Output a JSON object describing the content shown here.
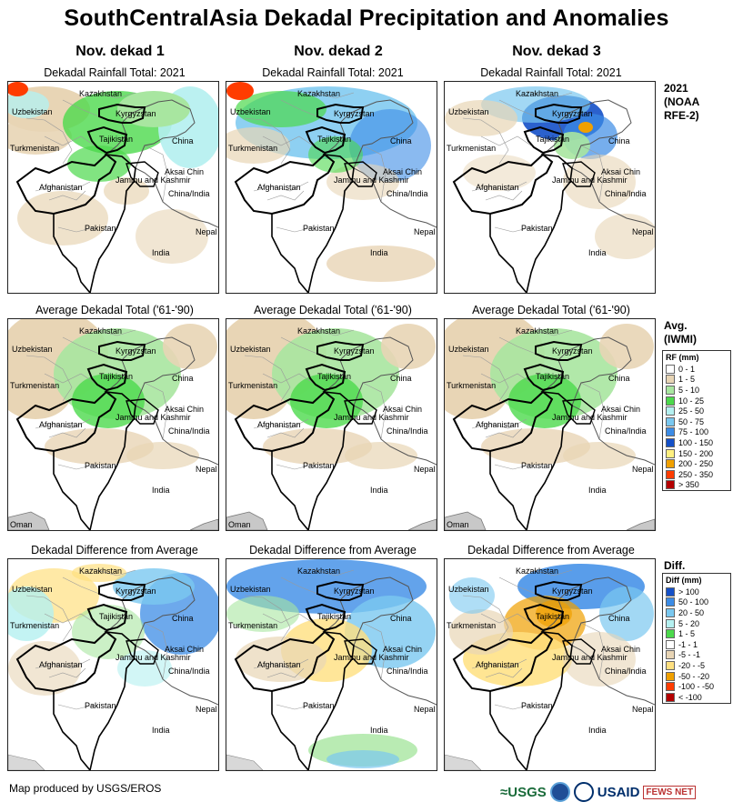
{
  "title": "SouthCentralAsia Dekadal Precipitation and Anomalies",
  "columns": [
    {
      "heading": "Nov. dekad 1"
    },
    {
      "heading": "Nov. dekad 2"
    },
    {
      "heading": "Nov. dekad 3"
    }
  ],
  "rows": [
    {
      "subtitle": "Dekadal Rainfall Total: 2021",
      "side_label": [
        "2021",
        "(NOAA",
        "RFE-2)"
      ]
    },
    {
      "subtitle": "Average Dekadal Total ('61-'90)",
      "side_label": [
        "Avg.",
        "(IWMI)"
      ]
    },
    {
      "subtitle": "Dekadal Difference from Average",
      "side_label": [
        "Diff."
      ]
    }
  ],
  "place_labels": {
    "kazakhstan": "Kazakhstan",
    "uzbekistan": "Uzbekistan",
    "kyrgyzstan": "Kyrgyzstan",
    "turkmenistan": "Turkmenistan",
    "tajikistan": "Tajikistan",
    "china": "China",
    "aksai_chin": "Aksai Chin",
    "jammu_kashmir": "Jammu and Kashmir",
    "china_india": "China/India",
    "afghanistan": "Afghanistan",
    "pakistan": "Pakistan",
    "nepal": "Nepal",
    "india": "India",
    "oman": "Oman"
  },
  "rf_legend": {
    "title": "RF (mm)",
    "items": [
      {
        "label": "0 - 1",
        "color": "#ffffff"
      },
      {
        "label": "1 - 5",
        "color": "#e8d5b5"
      },
      {
        "label": "5 - 10",
        "color": "#a8e6a0"
      },
      {
        "label": "10 - 25",
        "color": "#4cd94c"
      },
      {
        "label": "25 - 50",
        "color": "#b4f0f0"
      },
      {
        "label": "50 - 75",
        "color": "#7ac8f0"
      },
      {
        "label": "75 - 100",
        "color": "#3c8ce6"
      },
      {
        "label": "100 - 150",
        "color": "#1450c8"
      },
      {
        "label": "150 - 200",
        "color": "#fff080"
      },
      {
        "label": "200 - 250",
        "color": "#f0a000"
      },
      {
        "label": "250 - 350",
        "color": "#ff3c00"
      },
      {
        "label": "> 350",
        "color": "#b40000"
      }
    ]
  },
  "diff_legend": {
    "title": "Diff (mm)",
    "items": [
      {
        "label": "> 100",
        "color": "#1450c8"
      },
      {
        "label": "50 - 100",
        "color": "#3c8ce6"
      },
      {
        "label": "20 - 50",
        "color": "#7ac8f0"
      },
      {
        "label": "5 - 20",
        "color": "#b4f0f0"
      },
      {
        "label": "1 - 5",
        "color": "#4cd94c"
      },
      {
        "label": "-1 - 1",
        "color": "#ffffff"
      },
      {
        "label": "-5 - -1",
        "color": "#e8d5b5"
      },
      {
        "label": "-20 - -5",
        "color": "#ffe080"
      },
      {
        "label": "-50 - -20",
        "color": "#f0a000"
      },
      {
        "label": "-100 - -50",
        "color": "#ff3c00"
      },
      {
        "label": "< -100",
        "color": "#b40000"
      }
    ]
  },
  "footer": "Map produced by USGS/EROS",
  "logos": {
    "usgs": "≈USGS",
    "usaid": "USAID",
    "fews": "FEWS NET"
  }
}
